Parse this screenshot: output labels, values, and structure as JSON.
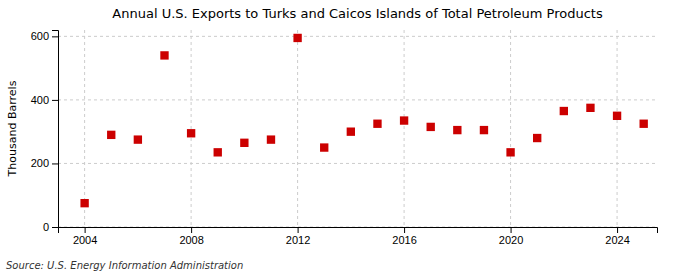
{
  "chart_data": {
    "type": "scatter",
    "title": "Annual U.S. Exports to Turks and Caicos Islands of Total Petroleum Products",
    "ylabel": "Thousand Barrels",
    "source": "Source: U.S. Energy Information Administration",
    "x": [
      2004,
      2005,
      2006,
      2007,
      2008,
      2009,
      2010,
      2011,
      2012,
      2013,
      2014,
      2015,
      2016,
      2017,
      2018,
      2019,
      2020,
      2021,
      2022,
      2023,
      2024,
      2025
    ],
    "values": [
      75,
      290,
      275,
      540,
      295,
      235,
      265,
      275,
      595,
      250,
      300,
      325,
      335,
      315,
      305,
      305,
      235,
      280,
      365,
      375,
      350,
      325
    ],
    "color": "#cc0000",
    "marker": "square",
    "xlim": [
      2003.0,
      2025.5
    ],
    "ylim": [
      0,
      620
    ],
    "xticks": [
      2004,
      2008,
      2012,
      2016,
      2020,
      2024
    ],
    "yticks": [
      0,
      200,
      400,
      600
    ],
    "grid": true
  }
}
